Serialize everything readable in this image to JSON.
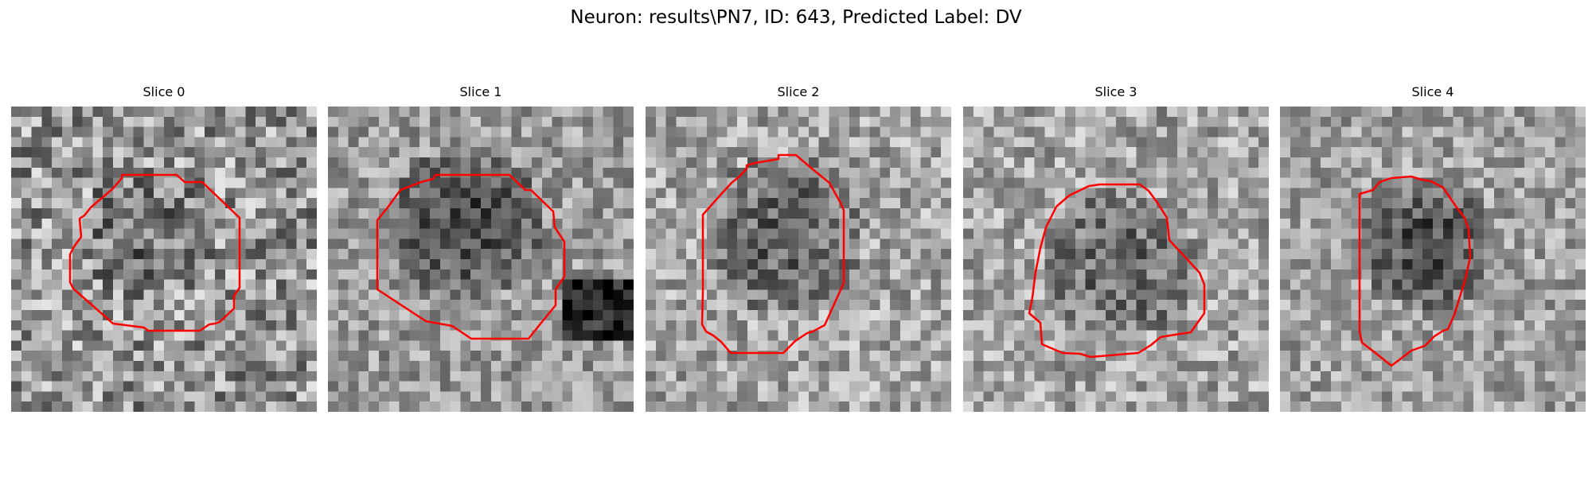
{
  "figure": {
    "title": "Neuron: results\\PN7, ID: 643, Predicted Label: DV",
    "contour_color": "#ff0000"
  },
  "slices": [
    {
      "title": "Slice 0"
    },
    {
      "title": "Slice 1"
    },
    {
      "title": "Slice 2"
    },
    {
      "title": "Slice 3"
    },
    {
      "title": "Slice 4"
    }
  ]
}
